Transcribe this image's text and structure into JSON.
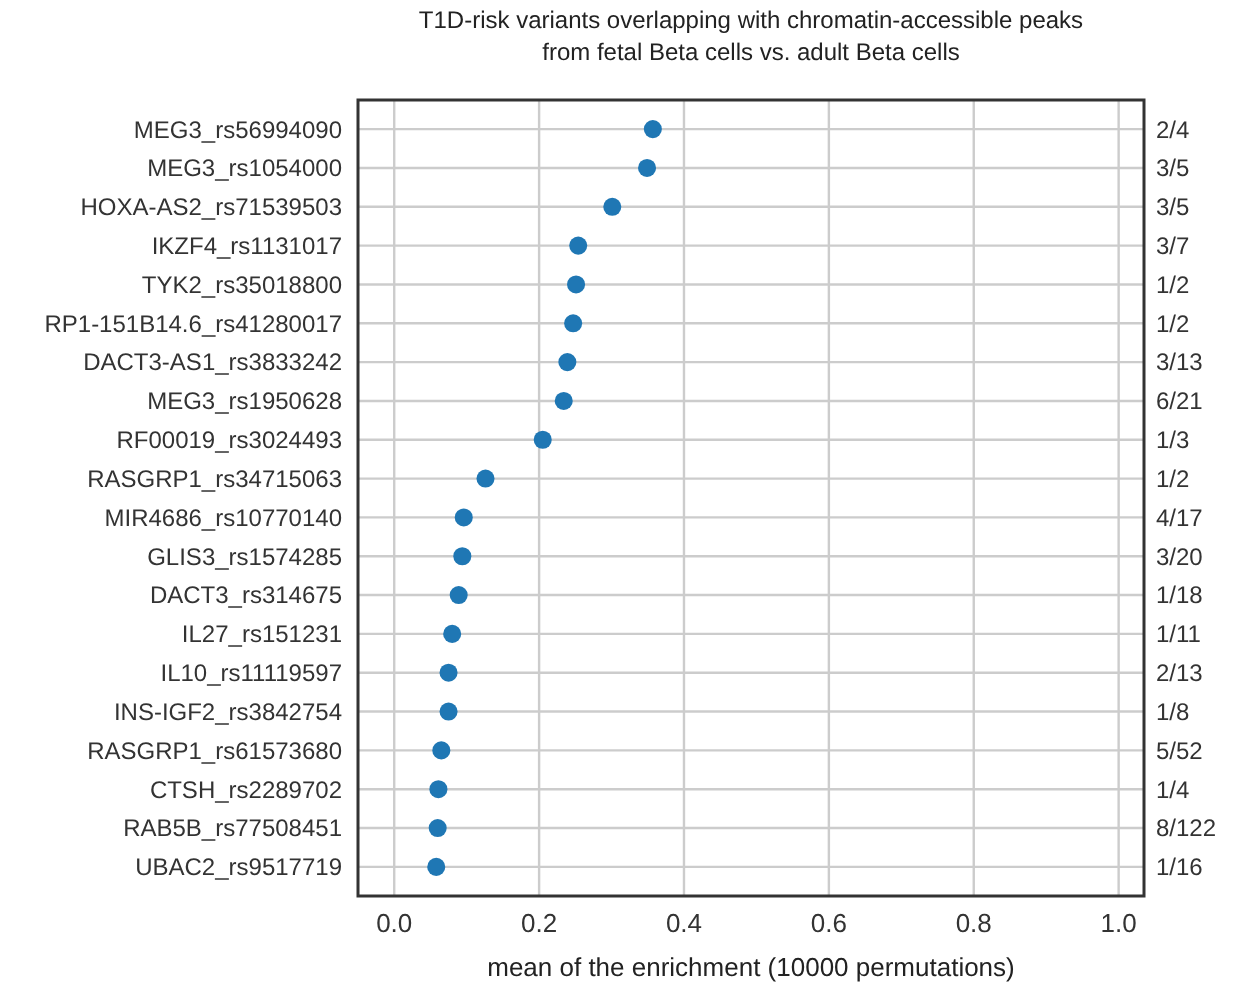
{
  "chart_data": {
    "type": "scatter",
    "orientation": "horizontal",
    "title": "T1D-risk variants overlapping with chromatin-accessible peaks\nfrom fetal Beta cells vs. adult Beta cells",
    "xlabel": "mean of the enrichment (10000 permutations)",
    "categories": [
      "MEG3_rs56994090",
      "MEG3_rs1054000",
      "HOXA-AS2_rs71539503",
      "IKZF4_rs1131017",
      "TYK2_rs35018800",
      "RP1-151B14.6_rs41280017",
      "DACT3-AS1_rs3833242",
      "MEG3_rs1950628",
      "RF00019_rs3024493",
      "RASGRP1_rs34715063",
      "MIR4686_rs10770140",
      "GLIS3_rs1574285",
      "DACT3_rs314675",
      "IL27_rs151231",
      "IL10_rs11119597",
      "INS-IGF2_rs3842754",
      "RASGRP1_rs61573680",
      "CTSH_rs2289702",
      "RAB5B_rs77508451",
      "UBAC2_rs9517719"
    ],
    "y2_categories": [
      "2/4",
      "3/5",
      "3/5",
      "3/7",
      "1/2",
      "1/2",
      "3/13",
      "6/21",
      "1/3",
      "1/2",
      "4/17",
      "3/20",
      "1/18",
      "1/11",
      "2/13",
      "1/8",
      "5/52",
      "1/4",
      "8/122",
      "1/16"
    ],
    "values": [
      0.357,
      0.349,
      0.301,
      0.254,
      0.251,
      0.247,
      0.239,
      0.234,
      0.205,
      0.126,
      0.096,
      0.094,
      0.089,
      0.08,
      0.075,
      0.075,
      0.065,
      0.061,
      0.06,
      0.058
    ],
    "color": "#1f77b4",
    "marker": "circle",
    "xlim": [
      -0.05,
      1.035
    ],
    "xticks": [
      {
        "value": 0,
        "label": "0.0"
      },
      0.2,
      0.4,
      0.6,
      0.8,
      {
        "value": 1,
        "label": "1.0"
      }
    ],
    "grid": true
  }
}
